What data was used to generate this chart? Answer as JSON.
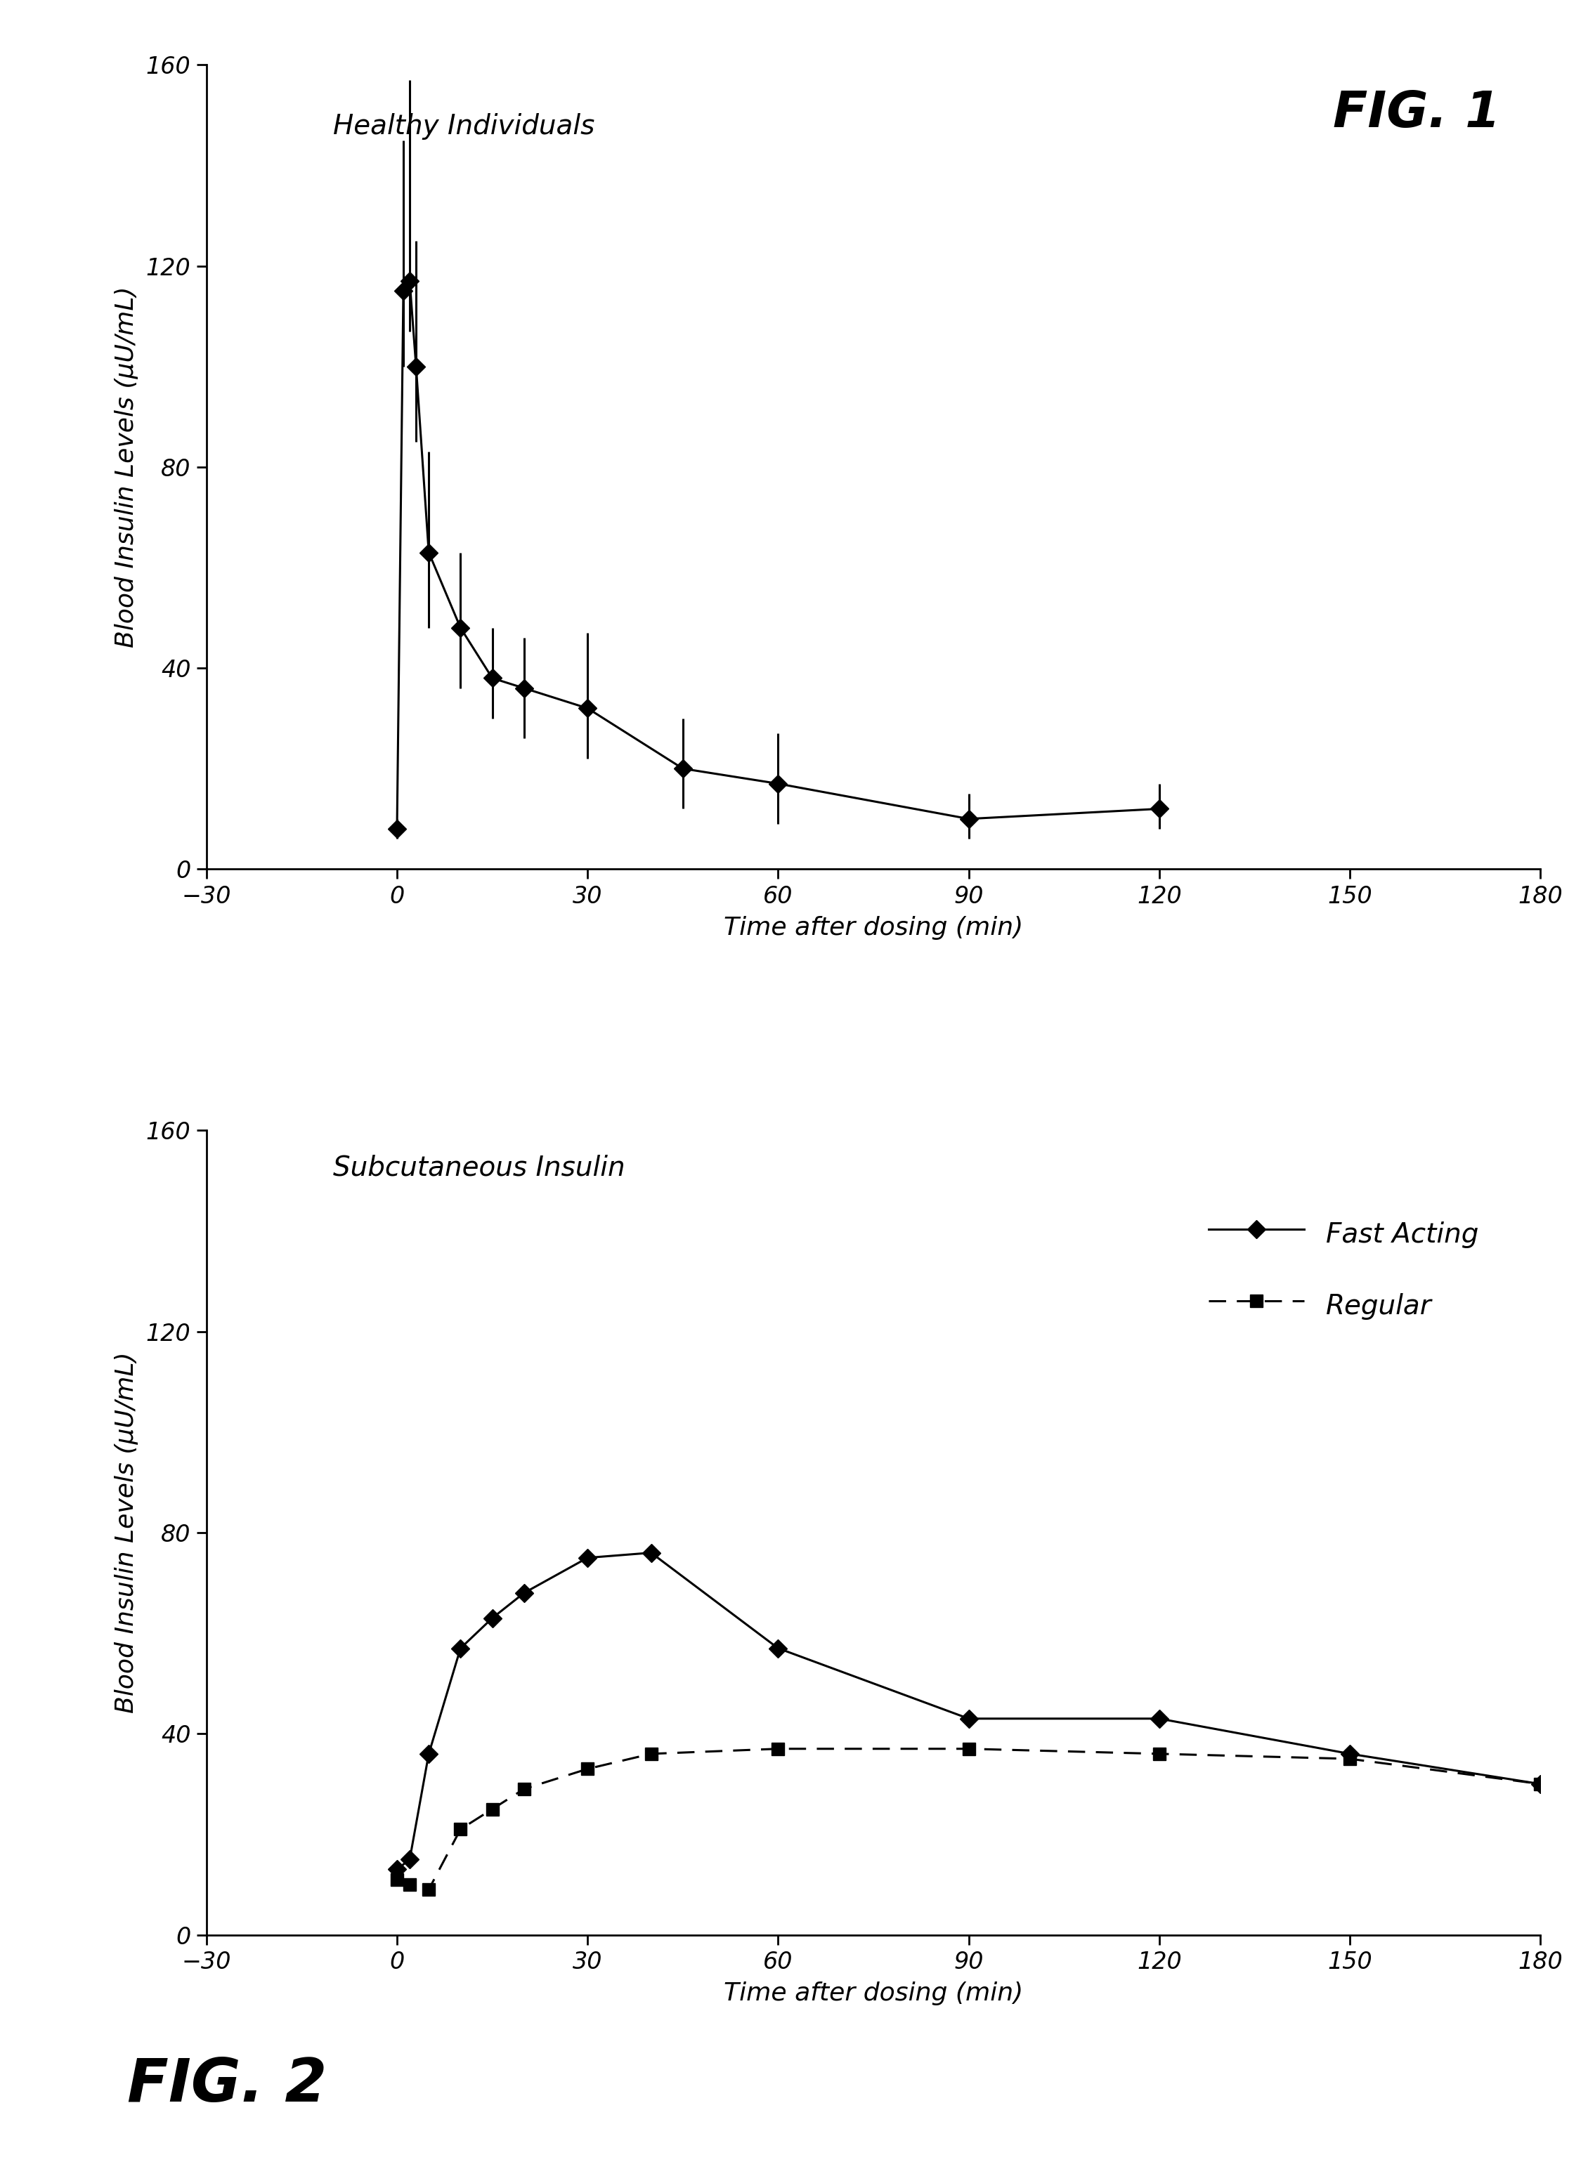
{
  "fig1": {
    "title": "Healthy Individuals",
    "fig_label": "FIG. 1",
    "x": [
      0,
      1,
      2,
      3,
      5,
      10,
      15,
      20,
      30,
      45,
      60,
      90,
      120
    ],
    "y": [
      8,
      115,
      117,
      100,
      63,
      48,
      38,
      36,
      32,
      20,
      17,
      10,
      12
    ],
    "yerr_low": [
      2,
      15,
      10,
      15,
      15,
      12,
      8,
      10,
      10,
      8,
      8,
      4,
      4
    ],
    "yerr_high": [
      2,
      145,
      155,
      130,
      90,
      65,
      48,
      45,
      45,
      30,
      28,
      16,
      18
    ],
    "xlim": [
      -30,
      180
    ],
    "ylim": [
      0,
      160
    ],
    "xticks": [
      -30,
      0,
      30,
      60,
      90,
      120,
      150,
      180
    ],
    "yticks": [
      0,
      40,
      80,
      120,
      160
    ],
    "xlabel": "Time after dosing (min)",
    "ylabel": "Blood Insulin Levels (µU/mL)"
  },
  "fig2": {
    "title": "Subcutaneous Insulin",
    "fig_label": "FIG. 2",
    "fast_x": [
      0,
      2,
      5,
      10,
      15,
      20,
      30,
      40,
      60,
      90,
      120,
      150,
      180
    ],
    "fast_y": [
      13,
      15,
      36,
      57,
      63,
      68,
      75,
      76,
      57,
      43,
      43,
      36,
      30
    ],
    "regular_x": [
      0,
      2,
      5,
      10,
      15,
      20,
      30,
      40,
      60,
      90,
      120,
      150,
      180
    ],
    "regular_y": [
      11,
      10,
      9,
      21,
      25,
      29,
      33,
      36,
      37,
      37,
      36,
      35,
      30
    ],
    "xlim": [
      -30,
      180
    ],
    "ylim": [
      0,
      160
    ],
    "xticks": [
      -30,
      0,
      30,
      60,
      90,
      120,
      150,
      180
    ],
    "yticks": [
      0,
      40,
      80,
      120,
      160
    ],
    "xlabel": "Time after dosing (min)",
    "ylabel": "Blood Insulin Levels (µU/mL)",
    "legend_fast": "Fast Acting",
    "legend_regular": "Regular"
  },
  "bg_color": "#ffffff",
  "line_color": "#000000",
  "font_size_tick": 24,
  "font_size_label": 26,
  "font_size_title": 28,
  "font_size_figlabel": 52,
  "marker_size": 13,
  "line_width": 2.2
}
